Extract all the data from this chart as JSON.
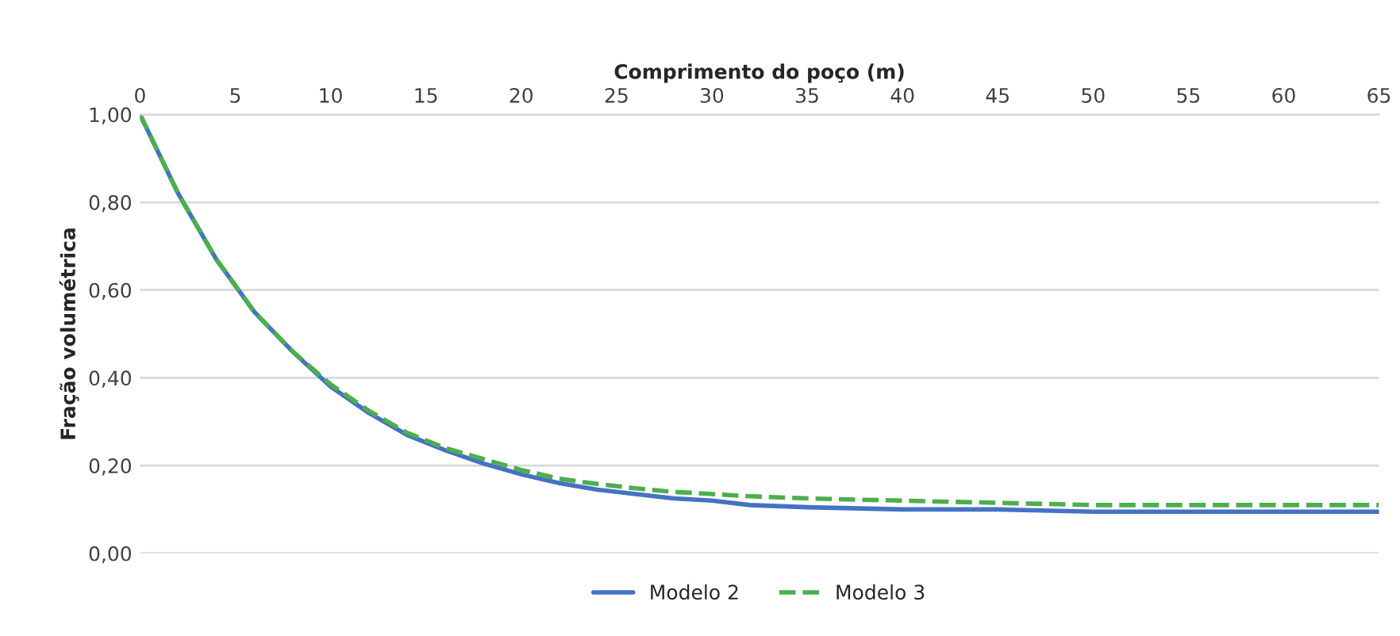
{
  "chart_data": {
    "type": "line",
    "xlabel": "Comprimento do poço (m)",
    "ylabel": "Fração volumétrica",
    "xlim": [
      0,
      65
    ],
    "xticks": [
      0,
      5,
      10,
      15,
      20,
      25,
      30,
      35,
      40,
      45,
      50,
      55,
      60,
      65
    ],
    "ylim": [
      0,
      1
    ],
    "yticks": [
      {
        "value": 0,
        "label": "0,00"
      },
      {
        "value": 0.2,
        "label": "0,20"
      },
      {
        "value": 0.4,
        "label": "0,40"
      },
      {
        "value": 0.6,
        "label": "0,60"
      },
      {
        "value": 0.8,
        "label": "0,80"
      },
      {
        "value": 1,
        "label": "1,00"
      }
    ],
    "grid": "y",
    "legend": "bottom",
    "marker": "none",
    "x": [
      0,
      2,
      4,
      5,
      6,
      8,
      10,
      12,
      14,
      16,
      18,
      20,
      22,
      24,
      26,
      28,
      30,
      32,
      35,
      40,
      45,
      50,
      55,
      60,
      65
    ],
    "series": [
      {
        "name": "Modelo 2",
        "color": "#4472c4",
        "line_style": "solid",
        "values": [
          1.0,
          0.82,
          0.67,
          0.61,
          0.55,
          0.46,
          0.38,
          0.32,
          0.27,
          0.235,
          0.205,
          0.18,
          0.16,
          0.145,
          0.135,
          0.125,
          0.12,
          0.11,
          0.105,
          0.1,
          0.1,
          0.095,
          0.095,
          0.095,
          0.095
        ]
      },
      {
        "name": "Modelo 3",
        "color": "#4cae4c",
        "line_style": "dashed",
        "values": [
          1.0,
          0.82,
          0.67,
          0.61,
          0.55,
          0.46,
          0.385,
          0.325,
          0.275,
          0.24,
          0.215,
          0.19,
          0.17,
          0.158,
          0.148,
          0.14,
          0.135,
          0.13,
          0.125,
          0.12,
          0.115,
          0.11,
          0.11,
          0.11,
          0.11
        ]
      }
    ]
  }
}
